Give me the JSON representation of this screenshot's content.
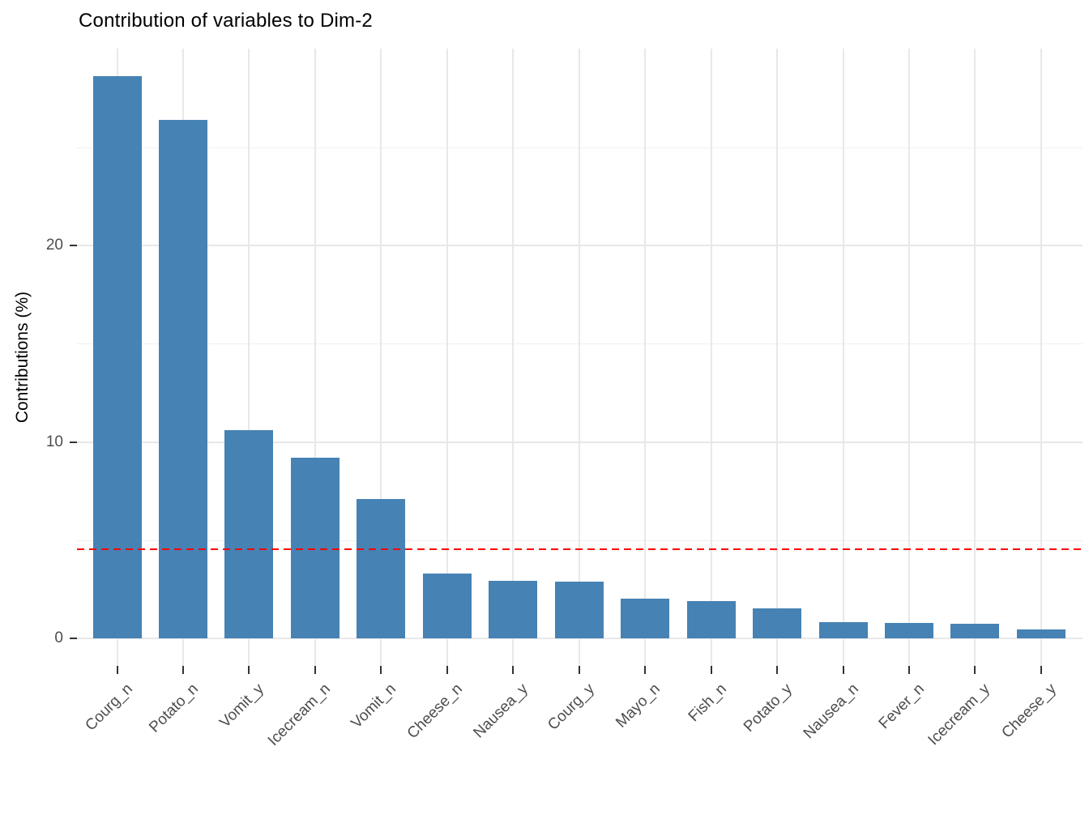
{
  "chart_data": {
    "type": "bar",
    "title": "Contribution of variables to Dim-2",
    "xlabel": "",
    "ylabel": "Contributions (%)",
    "categories": [
      "Courg_n",
      "Potato_n",
      "Vomit_y",
      "Icecream_n",
      "Vomit_n",
      "Cheese_n",
      "Nausea_y",
      "Courg_y",
      "Mayo_n",
      "Fish_n",
      "Potato_y",
      "Nausea_n",
      "Fever_n",
      "Icecream_y",
      "Cheese_y"
    ],
    "values": [
      28.6,
      26.4,
      10.6,
      9.2,
      7.1,
      3.3,
      2.93,
      2.89,
      2.02,
      1.9,
      1.53,
      0.82,
      0.78,
      0.74,
      0.45
    ],
    "reference_line": {
      "value": 4.55,
      "style": "dashed",
      "color": "#FF0000"
    },
    "bar_color": "#4682B4",
    "ylim": [
      0,
      30
    ],
    "y_major_ticks": [
      0,
      10,
      20
    ],
    "y_tick_labels": [
      "0",
      "10",
      "20"
    ],
    "y_minor_ticks": [
      5,
      15,
      25
    ],
    "grid": "major+minor",
    "legend_position": "none"
  }
}
